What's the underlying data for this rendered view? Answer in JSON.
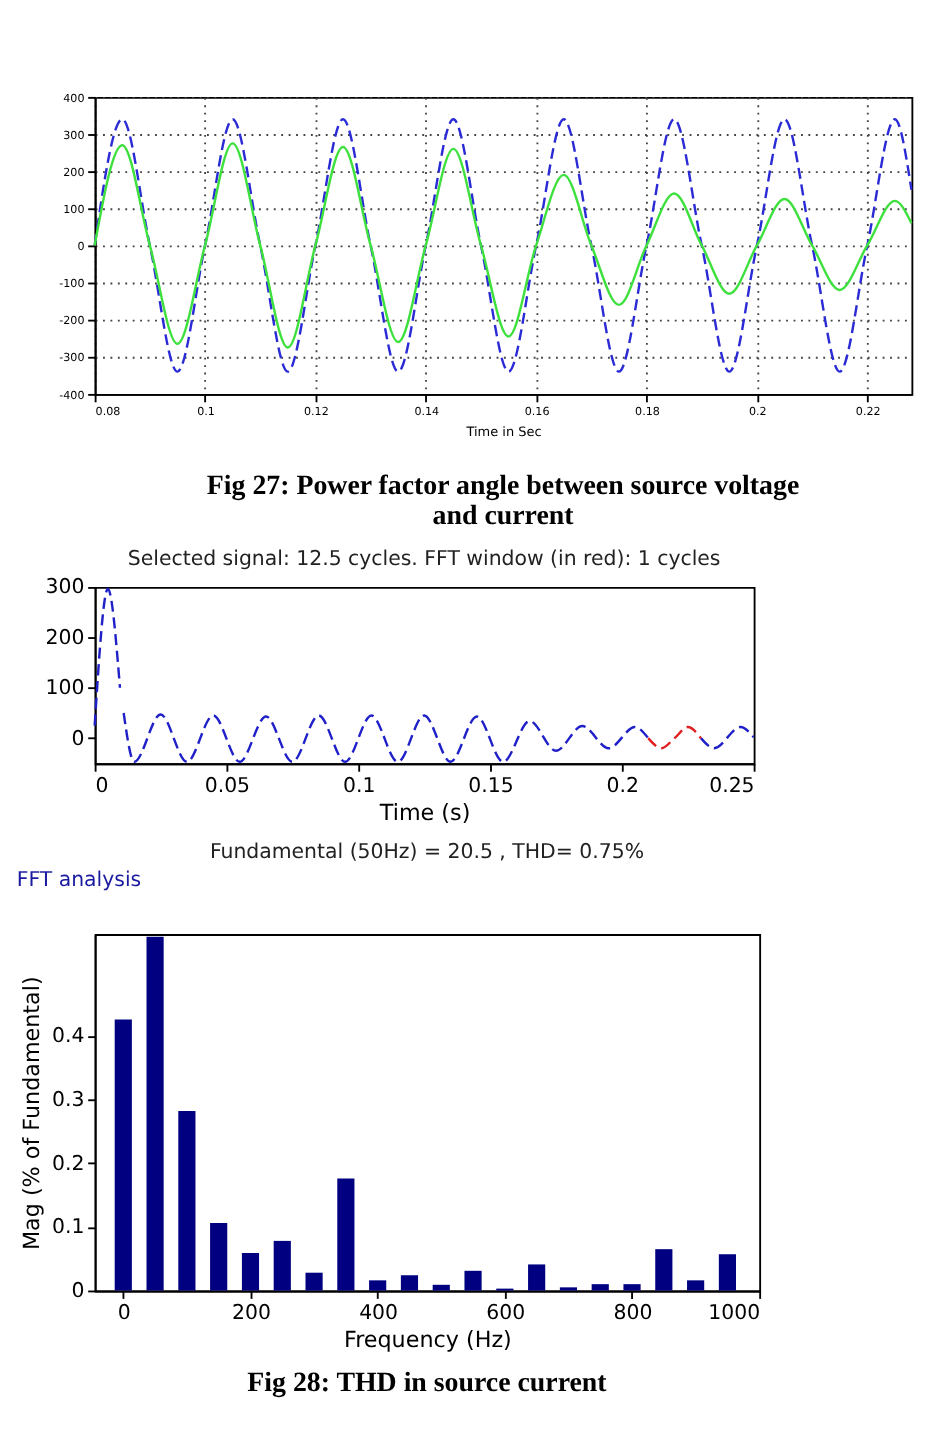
{
  "chart_data": [
    {
      "type": "line",
      "xlabel": "Time in Sec",
      "xlim": [
        0.08,
        0.228
      ],
      "xticks": [
        0.08,
        0.1,
        0.12,
        0.14,
        0.16,
        0.18,
        0.2,
        0.22
      ],
      "ylim": [
        -400,
        400
      ],
      "yticks": [
        -400,
        -300,
        -200,
        -100,
        0,
        100,
        200,
        300,
        400
      ],
      "grid": true,
      "x": [
        0.08,
        0.085,
        0.09,
        0.095,
        0.1,
        0.105,
        0.11,
        0.115,
        0.12,
        0.125,
        0.13,
        0.135,
        0.14,
        0.145,
        0.15,
        0.155,
        0.16,
        0.165,
        0.17,
        0.175,
        0.18,
        0.185,
        0.19,
        0.195,
        0.2,
        0.205,
        0.21,
        0.215,
        0.22,
        0.225,
        0.228
      ],
      "series": [
        {
          "color": "#2b2bd6",
          "line_style": "dashed",
          "values": [
            0,
            340,
            0,
            -340,
            0,
            340,
            0,
            -340,
            0,
            340,
            0,
            -340,
            0,
            340,
            0,
            -340,
            0,
            340,
            0,
            -340,
            0,
            340,
            0,
            -340,
            0,
            340,
            0,
            -340,
            0,
            340,
            150
          ]
        },
        {
          "color": "#3ee03e",
          "line_style": "solid",
          "values": [
            0,
            270,
            0,
            -265,
            0,
            275,
            0,
            -275,
            0,
            265,
            0,
            -260,
            0,
            260,
            0,
            -245,
            0,
            190,
            0,
            -160,
            0,
            140,
            0,
            -130,
            0,
            125,
            0,
            -120,
            0,
            120,
            60
          ]
        }
      ],
      "annotations": [
        "Fig 27: Power factor angle between source voltage and current"
      ]
    },
    {
      "type": "line",
      "title": "Selected signal: 12.5 cycles. FFT window (in red): 1 cycles",
      "xlabel": "Time (s)",
      "xlim": [
        0,
        0.25
      ],
      "xticks": [
        0,
        0.05,
        0.1,
        0.15,
        0.2,
        0.25
      ],
      "ylim": [
        -50,
        300
      ],
      "yticks": [
        0,
        100,
        200,
        300
      ],
      "grid": false,
      "series": [
        {
          "color": "#2020c8",
          "line_style": "dashed",
          "x": [
            0,
            0.005,
            0.0096,
            0.0097,
            0.011,
            0.015,
            0.025,
            0.035,
            0.045,
            0.055,
            0.065,
            0.075,
            0.085,
            0.095,
            0.105,
            0.115,
            0.125,
            0.135,
            0.145,
            0.155,
            0.165,
            0.175,
            0.185,
            0.195,
            0.205,
            0.21,
            0.2101,
            0.23,
            0.235,
            0.245,
            0.25
          ],
          "values": [
            25,
            296,
            100,
            null,
            50,
            -47,
            47,
            -47,
            45,
            -47,
            43,
            -47,
            45,
            -47,
            45,
            -47,
            45,
            -47,
            43,
            -47,
            34,
            -25,
            24,
            -20,
            22,
            0,
            null,
            0,
            -20,
            22,
            2
          ]
        },
        {
          "color": "#e02020",
          "line_style": "dashed",
          "x": [
            0.21,
            0.215,
            0.22,
            0.225,
            0.23
          ],
          "values": [
            0,
            -20,
            0,
            22,
            0
          ]
        }
      ]
    },
    {
      "type": "bar",
      "title": "Fundamental (50Hz) = 20.5 , THD= 0.75%",
      "xlabel": "Frequency (Hz)",
      "ylabel": "Mag (% of Fundamental)",
      "xlim": [
        -45,
        1000
      ],
      "xticks": [
        0,
        200,
        400,
        600,
        800,
        1000
      ],
      "ylim": [
        0,
        0.56
      ],
      "yticks": [
        0,
        0.1,
        0.2,
        0.3,
        0.4
      ],
      "grid": false,
      "x": [
        0,
        50,
        100,
        150,
        200,
        250,
        300,
        350,
        400,
        450,
        500,
        550,
        600,
        650,
        700,
        750,
        800,
        850,
        900,
        950
      ],
      "series": [
        {
          "color": "#000080",
          "values": [
            0.426,
            0.556,
            0.282,
            0.106,
            0.059,
            0.078,
            0.028,
            0.176,
            0.016,
            0.024,
            0.009,
            0.031,
            0.003,
            0.041,
            0.005,
            0.01,
            0.01,
            0.065,
            0.016,
            0.057
          ]
        }
      ],
      "annotations": [
        "FFT analysis",
        "Fig 28: THD in source current"
      ]
    }
  ]
}
